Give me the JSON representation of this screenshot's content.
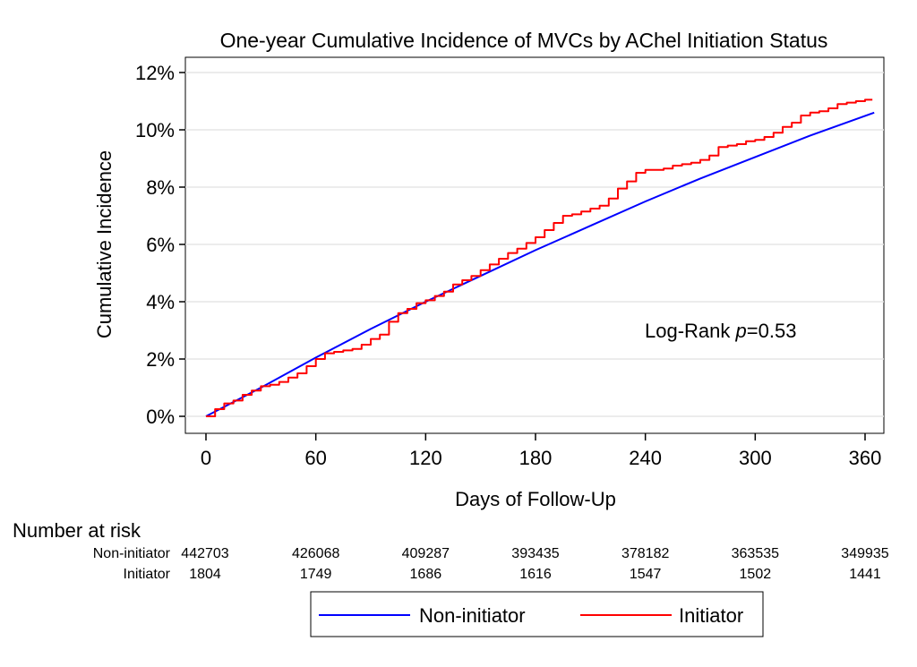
{
  "chart_data": {
    "type": "line",
    "title": "One-year Cumulative Incidence of MVCs by AChel Initiation Status",
    "xlabel": "Days of Follow-Up",
    "ylabel": "Cumulative Incidence",
    "xlim": [
      0,
      365
    ],
    "ylim": [
      0,
      12
    ],
    "x_ticks": [
      0,
      60,
      120,
      180,
      240,
      300,
      360
    ],
    "y_ticks": [
      0,
      2,
      4,
      6,
      8,
      10,
      12
    ],
    "y_tick_labels": [
      "0%",
      "2%",
      "4%",
      "6%",
      "8%",
      "10%",
      "12%"
    ],
    "grid": "horizontal",
    "annotation": {
      "prefix": "Log-Rank ",
      "italic": "p",
      "suffix": "=0.53"
    },
    "series": [
      {
        "name": "Non-initiator",
        "color": "#0000ff",
        "x": [
          0,
          30,
          60,
          90,
          120,
          150,
          180,
          210,
          240,
          270,
          300,
          330,
          365
        ],
        "y": [
          0,
          1.0,
          2.05,
          3.05,
          4.0,
          4.9,
          5.8,
          6.65,
          7.5,
          8.3,
          9.05,
          9.8,
          10.6
        ]
      },
      {
        "name": "Initiator",
        "color": "#ff0000",
        "x": [
          0,
          5,
          10,
          15,
          20,
          25,
          30,
          35,
          40,
          45,
          50,
          55,
          60,
          65,
          70,
          75,
          80,
          85,
          90,
          95,
          100,
          105,
          110,
          115,
          120,
          125,
          130,
          135,
          140,
          145,
          150,
          155,
          160,
          165,
          170,
          175,
          180,
          185,
          190,
          195,
          200,
          205,
          210,
          215,
          220,
          225,
          230,
          235,
          240,
          245,
          250,
          255,
          260,
          265,
          270,
          275,
          280,
          285,
          290,
          295,
          300,
          305,
          310,
          315,
          320,
          325,
          330,
          335,
          340,
          345,
          350,
          355,
          360,
          364
        ],
        "y": [
          0,
          0.25,
          0.45,
          0.55,
          0.75,
          0.9,
          1.05,
          1.1,
          1.2,
          1.35,
          1.5,
          1.75,
          2.0,
          2.2,
          2.25,
          2.3,
          2.35,
          2.5,
          2.7,
          2.85,
          3.3,
          3.6,
          3.75,
          3.95,
          4.05,
          4.2,
          4.35,
          4.6,
          4.75,
          4.9,
          5.1,
          5.3,
          5.5,
          5.7,
          5.85,
          6.05,
          6.25,
          6.5,
          6.75,
          7.0,
          7.05,
          7.15,
          7.25,
          7.35,
          7.6,
          7.95,
          8.2,
          8.5,
          8.6,
          8.6,
          8.65,
          8.75,
          8.8,
          8.85,
          8.95,
          9.1,
          9.4,
          9.45,
          9.5,
          9.6,
          9.65,
          9.75,
          9.9,
          10.1,
          10.25,
          10.5,
          10.6,
          10.65,
          10.75,
          10.9,
          10.95,
          11.0,
          11.05,
          11.05
        ]
      }
    ],
    "risk_table": {
      "header": "Number at risk",
      "rows": [
        {
          "label": "Non-initiator",
          "values": [
            "442703",
            "426068",
            "409287",
            "393435",
            "378182",
            "363535",
            "349935"
          ]
        },
        {
          "label": "Initiator",
          "values": [
            "1804",
            "1749",
            "1686",
            "1616",
            "1547",
            "1502",
            "1441"
          ]
        }
      ]
    },
    "legend": {
      "placement": "bottom-center"
    }
  }
}
